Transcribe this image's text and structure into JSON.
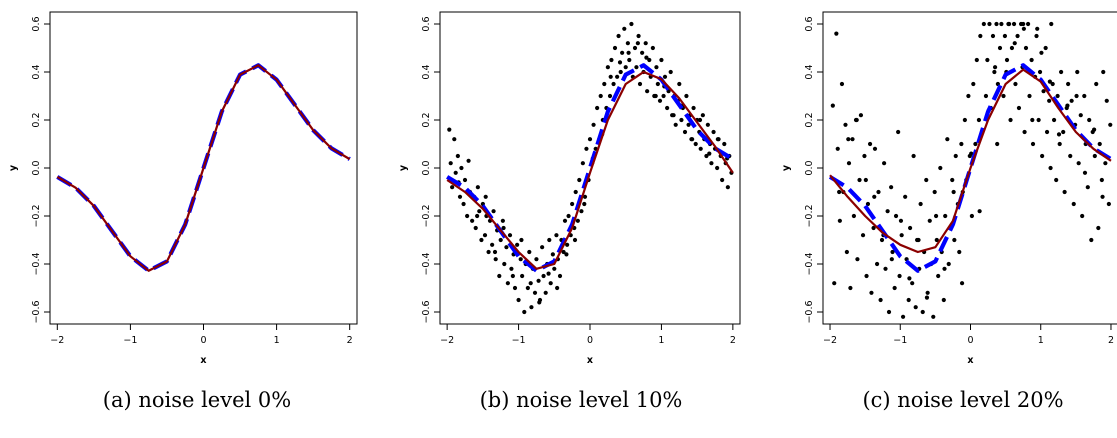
{
  "chart_data": [
    {
      "type": "scatter",
      "caption": "(a) noise level 0%",
      "xlabel": "x",
      "ylabel": "y",
      "xlim": [
        -2.1,
        2.1
      ],
      "ylim": [
        -0.65,
        0.65
      ],
      "xticks": [
        -2,
        -1,
        0,
        1,
        2
      ],
      "yticks": [
        -0.6,
        -0.4,
        -0.2,
        0.0,
        0.2,
        0.4,
        0.6
      ],
      "xtick_labels": [
        "−2",
        "−1",
        "0",
        "1",
        "2"
      ],
      "ytick_labels": [
        "−0.6",
        "−0.4",
        "−0.2",
        "0.0",
        "0.2",
        "0.4",
        "0.6"
      ],
      "grid": false,
      "true_curve": {
        "color": "#0000ff",
        "style": "dashed",
        "x": [
          -2.0,
          -1.75,
          -1.5,
          -1.25,
          -1.0,
          -0.75,
          -0.5,
          -0.25,
          0.0,
          0.25,
          0.5,
          0.75,
          1.0,
          1.25,
          1.5,
          1.75,
          2.0
        ],
        "y": [
          -0.037,
          -0.082,
          -0.158,
          -0.263,
          -0.368,
          -0.428,
          -0.389,
          -0.235,
          0.0,
          0.235,
          0.389,
          0.428,
          0.368,
          0.263,
          0.158,
          0.082,
          0.037
        ]
      },
      "fitted_curve": {
        "color": "#8b0000",
        "style": "solid",
        "x": [
          -2.0,
          -1.75,
          -1.5,
          -1.25,
          -1.0,
          -0.75,
          -0.5,
          -0.25,
          0.0,
          0.25,
          0.5,
          0.75,
          1.0,
          1.25,
          1.5,
          1.75,
          2.0
        ],
        "y": [
          -0.037,
          -0.082,
          -0.158,
          -0.263,
          -0.368,
          -0.428,
          -0.389,
          -0.235,
          0.0,
          0.235,
          0.389,
          0.428,
          0.368,
          0.263,
          0.158,
          0.082,
          0.037
        ]
      },
      "points": {
        "color": "#000000",
        "x": [],
        "y": []
      }
    },
    {
      "type": "scatter",
      "caption": "(b) noise level 10%",
      "xlabel": "x",
      "ylabel": "y",
      "xlim": [
        -2.1,
        2.1
      ],
      "ylim": [
        -0.65,
        0.65
      ],
      "xticks": [
        -2,
        -1,
        0,
        1,
        2
      ],
      "yticks": [
        -0.6,
        -0.4,
        -0.2,
        0.0,
        0.2,
        0.4,
        0.6
      ],
      "xtick_labels": [
        "−2",
        "−1",
        "0",
        "1",
        "2"
      ],
      "ytick_labels": [
        "−0.6",
        "−0.4",
        "−0.2",
        "0.0",
        "0.2",
        "0.4",
        "0.6"
      ],
      "grid": false,
      "true_curve": {
        "color": "#0000ff",
        "style": "dashed",
        "x": [
          -2.0,
          -1.75,
          -1.5,
          -1.25,
          -1.0,
          -0.75,
          -0.5,
          -0.25,
          0.0,
          0.25,
          0.5,
          0.75,
          1.0,
          1.25,
          1.5,
          1.75,
          2.0
        ],
        "y": [
          -0.037,
          -0.082,
          -0.158,
          -0.263,
          -0.368,
          -0.428,
          -0.389,
          -0.235,
          0.0,
          0.235,
          0.389,
          0.428,
          0.368,
          0.263,
          0.158,
          0.082,
          0.037
        ]
      },
      "fitted_curve": {
        "color": "#8b0000",
        "style": "solid",
        "x": [
          -2.0,
          -1.75,
          -1.5,
          -1.25,
          -1.0,
          -0.75,
          -0.5,
          -0.25,
          0.0,
          0.25,
          0.5,
          0.75,
          1.0,
          1.25,
          1.5,
          1.75,
          2.0
        ],
        "y": [
          -0.05,
          -0.1,
          -0.17,
          -0.26,
          -0.35,
          -0.42,
          -0.4,
          -0.25,
          -0.02,
          0.2,
          0.35,
          0.4,
          0.37,
          0.29,
          0.19,
          0.09,
          -0.02
        ]
      },
      "points": {
        "color": "#000000",
        "x": [
          -1.95,
          -1.93,
          -1.9,
          -1.88,
          -1.85,
          -1.82,
          -1.8,
          -1.77,
          -1.75,
          -1.72,
          -1.7,
          -1.68,
          -1.65,
          -1.62,
          -1.6,
          -1.57,
          -1.55,
          -1.52,
          -1.5,
          -1.47,
          -1.45,
          -1.42,
          -1.4,
          -1.37,
          -1.35,
          -1.32,
          -1.3,
          -1.27,
          -1.25,
          -1.22,
          -1.2,
          -1.17,
          -1.15,
          -1.12,
          -1.1,
          -1.07,
          -1.05,
          -1.02,
          -1.0,
          -0.97,
          -0.95,
          -0.92,
          -0.9,
          -0.87,
          -0.85,
          -0.82,
          -0.8,
          -0.77,
          -0.75,
          -0.72,
          -0.7,
          -0.67,
          -0.65,
          -0.62,
          -0.6,
          -0.57,
          -0.55,
          -0.52,
          -0.5,
          -0.47,
          -0.45,
          -0.42,
          -0.4,
          -0.37,
          -0.35,
          -0.32,
          -0.3,
          -0.27,
          -0.25,
          -0.22,
          -0.2,
          -0.17,
          -0.15,
          -0.12,
          -0.1,
          -0.07,
          -0.05,
          -0.02,
          0.0,
          0.03,
          0.05,
          0.08,
          0.1,
          0.13,
          0.15,
          0.18,
          0.2,
          0.23,
          0.25,
          0.28,
          0.3,
          0.33,
          0.35,
          0.38,
          0.4,
          0.43,
          0.45,
          0.48,
          0.5,
          0.53,
          0.55,
          0.58,
          0.6,
          0.63,
          0.65,
          0.68,
          0.7,
          0.73,
          0.75,
          0.78,
          0.8,
          0.83,
          0.85,
          0.88,
          0.9,
          0.93,
          0.95,
          0.98,
          1.0,
          1.03,
          1.05,
          1.08,
          1.1,
          1.13,
          1.15,
          1.18,
          1.2,
          1.23,
          1.25,
          1.28,
          1.3,
          1.33,
          1.35,
          1.38,
          1.4,
          1.43,
          1.45,
          1.48,
          1.5,
          1.53,
          1.55,
          1.58,
          1.6,
          1.63,
          1.65,
          1.68,
          1.7,
          1.73,
          1.75,
          1.78,
          1.8,
          1.83,
          1.85,
          1.88,
          1.9,
          1.93,
          1.95,
          1.98,
          -1.97,
          -1.84,
          -1.71,
          -1.58,
          -1.46,
          -1.33,
          -1.21,
          -1.08,
          -0.96,
          -0.83,
          -0.71,
          -0.58,
          -0.46,
          -0.33,
          -0.21,
          -0.08,
          0.04,
          0.17,
          0.29,
          0.42,
          0.54,
          0.67,
          0.79,
          0.92,
          1.04,
          1.17,
          1.29,
          1.42,
          1.54,
          1.67,
          1.79,
          1.92
        ],
        "y": [
          0.02,
          -0.08,
          0.12,
          -0.02,
          0.05,
          -0.12,
          0.0,
          -0.15,
          -0.05,
          -0.2,
          0.03,
          -0.1,
          -0.22,
          -0.12,
          -0.25,
          -0.08,
          -0.18,
          -0.3,
          -0.15,
          -0.28,
          -0.2,
          -0.35,
          -0.22,
          -0.32,
          -0.18,
          -0.38,
          -0.26,
          -0.45,
          -0.3,
          -0.22,
          -0.4,
          -0.33,
          -0.48,
          -0.28,
          -0.42,
          -0.36,
          -0.5,
          -0.32,
          -0.55,
          -0.38,
          -0.45,
          -0.6,
          -0.4,
          -0.5,
          -0.35,
          -0.58,
          -0.42,
          -0.52,
          -0.38,
          -0.47,
          -0.55,
          -0.33,
          -0.45,
          -0.52,
          -0.4,
          -0.3,
          -0.48,
          -0.36,
          -0.42,
          -0.28,
          -0.38,
          -0.45,
          -0.3,
          -0.35,
          -0.22,
          -0.32,
          -0.2,
          -0.28,
          -0.15,
          -0.25,
          -0.1,
          -0.22,
          -0.05,
          -0.18,
          0.02,
          -0.12,
          0.08,
          -0.05,
          0.12,
          0.02,
          0.18,
          0.08,
          0.25,
          0.12,
          0.3,
          0.2,
          0.35,
          0.25,
          0.42,
          0.3,
          0.45,
          0.35,
          0.5,
          0.38,
          0.55,
          0.4,
          0.48,
          0.58,
          0.42,
          0.52,
          0.45,
          0.6,
          0.38,
          0.5,
          0.42,
          0.55,
          0.35,
          0.48,
          0.4,
          0.52,
          0.32,
          0.45,
          0.38,
          0.5,
          0.3,
          0.42,
          0.35,
          0.28,
          0.45,
          0.3,
          0.38,
          0.25,
          0.32,
          0.4,
          0.22,
          0.3,
          0.18,
          0.28,
          0.35,
          0.2,
          0.25,
          0.15,
          0.3,
          0.18,
          0.22,
          0.12,
          0.25,
          0.1,
          0.2,
          0.15,
          0.08,
          0.22,
          0.12,
          0.05,
          0.18,
          0.1,
          0.02,
          0.15,
          0.08,
          0.0,
          0.12,
          0.05,
          -0.05,
          0.1,
          0.02,
          -0.08,
          0.05,
          -0.02,
          0.16,
          -0.06,
          -0.1,
          -0.2,
          -0.12,
          -0.35,
          -0.25,
          -0.45,
          -0.3,
          -0.48,
          -0.56,
          -0.44,
          -0.5,
          -0.36,
          -0.3,
          -0.15,
          0.04,
          0.14,
          0.38,
          0.44,
          0.48,
          0.52,
          0.46,
          0.3,
          0.34,
          0.22,
          0.26,
          0.12,
          0.2,
          0.06,
          0.12,
          0.04
        ]
      }
    },
    {
      "type": "scatter",
      "caption": "(c) noise level 20%",
      "xlabel": "x",
      "ylabel": "y",
      "xlim": [
        -2.1,
        2.1
      ],
      "ylim": [
        -0.65,
        0.65
      ],
      "xticks": [
        -2,
        -1,
        0,
        1,
        2
      ],
      "yticks": [
        -0.6,
        -0.4,
        -0.2,
        0.0,
        0.2,
        0.4,
        0.6
      ],
      "xtick_labels": [
        "−2",
        "−1",
        "0",
        "1",
        "2"
      ],
      "ytick_labels": [
        "−0.6",
        "−0.4",
        "−0.2",
        "0.0",
        "0.2",
        "0.4",
        "0.6"
      ],
      "grid": false,
      "true_curve": {
        "color": "#0000ff",
        "style": "dashed",
        "x": [
          -2.0,
          -1.75,
          -1.5,
          -1.25,
          -1.0,
          -0.75,
          -0.5,
          -0.25,
          0.0,
          0.25,
          0.5,
          0.75,
          1.0,
          1.25,
          1.5,
          1.75,
          2.0
        ],
        "y": [
          -0.037,
          -0.082,
          -0.158,
          -0.263,
          -0.368,
          -0.428,
          -0.389,
          -0.235,
          0.0,
          0.235,
          0.389,
          0.428,
          0.368,
          0.263,
          0.158,
          0.082,
          0.037
        ]
      },
      "fitted_curve": {
        "color": "#8b0000",
        "style": "solid",
        "x": [
          -2.0,
          -1.75,
          -1.5,
          -1.25,
          -1.0,
          -0.75,
          -0.5,
          -0.25,
          0.0,
          0.25,
          0.5,
          0.75,
          1.0,
          1.25,
          1.5,
          1.75,
          2.0
        ],
        "y": [
          -0.03,
          -0.12,
          -0.2,
          -0.27,
          -0.32,
          -0.35,
          -0.33,
          -0.22,
          0.0,
          0.2,
          0.35,
          0.41,
          0.36,
          0.25,
          0.15,
          0.08,
          0.03
        ]
      },
      "points": {
        "color": "#000000",
        "x": [
          -1.96,
          -1.94,
          -1.91,
          -1.89,
          -1.86,
          -1.83,
          -1.81,
          -1.78,
          -1.76,
          -1.73,
          -1.71,
          -1.68,
          -1.66,
          -1.63,
          -1.61,
          -1.58,
          -1.56,
          -1.53,
          -1.51,
          -1.48,
          -1.46,
          -1.43,
          -1.41,
          -1.38,
          -1.36,
          -1.33,
          -1.31,
          -1.28,
          -1.26,
          -1.23,
          -1.21,
          -1.18,
          -1.16,
          -1.13,
          -1.11,
          -1.08,
          -1.06,
          -1.03,
          -1.01,
          -0.98,
          -0.96,
          -0.93,
          -0.91,
          -0.88,
          -0.86,
          -0.83,
          -0.81,
          -0.78,
          -0.76,
          -0.73,
          -0.71,
          -0.68,
          -0.66,
          -0.63,
          -0.61,
          -0.58,
          -0.56,
          -0.53,
          -0.51,
          -0.48,
          -0.46,
          -0.43,
          -0.41,
          -0.38,
          -0.36,
          -0.33,
          -0.31,
          -0.28,
          -0.26,
          -0.23,
          -0.21,
          -0.18,
          -0.16,
          -0.13,
          -0.11,
          -0.08,
          -0.06,
          -0.03,
          -0.01,
          0.02,
          0.04,
          0.07,
          0.09,
          0.12,
          0.14,
          0.17,
          0.19,
          0.22,
          0.24,
          0.27,
          0.29,
          0.32,
          0.34,
          0.37,
          0.39,
          0.42,
          0.44,
          0.47,
          0.49,
          0.52,
          0.54,
          0.57,
          0.59,
          0.62,
          0.64,
          0.67,
          0.69,
          0.72,
          0.74,
          0.77,
          0.79,
          0.82,
          0.84,
          0.87,
          0.89,
          0.92,
          0.94,
          0.97,
          0.99,
          1.02,
          1.04,
          1.07,
          1.09,
          1.12,
          1.14,
          1.17,
          1.19,
          1.22,
          1.24,
          1.27,
          1.29,
          1.32,
          1.34,
          1.37,
          1.39,
          1.42,
          1.44,
          1.47,
          1.49,
          1.52,
          1.54,
          1.57,
          1.59,
          1.62,
          1.64,
          1.67,
          1.69,
          1.72,
          1.74,
          1.77,
          1.79,
          1.82,
          1.84,
          1.87,
          1.89,
          1.92,
          1.94,
          1.97,
          1.99,
          -1.87,
          -1.74,
          -1.62,
          -1.49,
          -1.37,
          -1.24,
          -1.12,
          -0.99,
          -0.87,
          -0.74,
          -0.62,
          -0.49,
          -0.37,
          -0.24,
          -0.12,
          0.01,
          0.13,
          0.26,
          0.38,
          0.51,
          0.63,
          0.76,
          0.88,
          1.01,
          1.13,
          1.26,
          1.38,
          1.51,
          1.63,
          1.76,
          1.88,
          0.35,
          0.55,
          0.75,
          0.95,
          1.15
        ],
        "y": [
          0.26,
          -0.48,
          0.56,
          0.08,
          -0.22,
          0.35,
          -0.1,
          0.18,
          -0.35,
          0.02,
          -0.5,
          0.12,
          -0.2,
          0.2,
          -0.38,
          -0.05,
          0.22,
          -0.28,
          0.05,
          -0.45,
          -0.15,
          0.1,
          -0.52,
          -0.25,
          0.08,
          -0.4,
          -0.1,
          -0.55,
          -0.3,
          0.02,
          -0.42,
          -0.18,
          -0.6,
          -0.08,
          -0.35,
          -0.5,
          -0.2,
          0.15,
          -0.45,
          -0.28,
          -0.62,
          -0.12,
          -0.38,
          -0.55,
          -0.25,
          -0.48,
          0.05,
          -0.58,
          -0.3,
          -0.42,
          -0.15,
          -0.6,
          -0.35,
          -0.05,
          -0.52,
          -0.22,
          -0.4,
          -0.62,
          -0.1,
          -0.3,
          -0.45,
          0.0,
          -0.35,
          -0.55,
          -0.2,
          0.12,
          -0.4,
          -0.25,
          -0.05,
          -0.3,
          0.05,
          -0.15,
          -0.35,
          0.1,
          -0.1,
          0.2,
          -0.05,
          0.3,
          0.05,
          -0.2,
          0.35,
          0.1,
          0.45,
          0.2,
          0.55,
          0.15,
          0.6,
          0.3,
          0.45,
          0.6,
          0.25,
          0.55,
          0.4,
          0.6,
          0.35,
          0.5,
          0.6,
          0.3,
          0.55,
          0.45,
          0.6,
          0.2,
          0.5,
          0.6,
          0.35,
          0.55,
          0.25,
          0.6,
          0.42,
          0.15,
          0.5,
          0.6,
          0.3,
          0.45,
          0.1,
          0.38,
          0.55,
          0.2,
          0.4,
          0.05,
          0.32,
          0.5,
          0.15,
          0.28,
          0.0,
          0.35,
          0.2,
          -0.05,
          0.3,
          0.1,
          0.4,
          0.15,
          -0.1,
          0.25,
          0.35,
          0.05,
          0.28,
          -0.15,
          0.18,
          0.4,
          0.02,
          0.22,
          -0.2,
          0.3,
          0.1,
          -0.08,
          0.2,
          -0.3,
          0.15,
          0.05,
          0.35,
          -0.25,
          0.1,
          -0.05,
          0.4,
          0.02,
          0.28,
          -0.15,
          0.18,
          -0.1,
          0.12,
          0.2,
          -0.05,
          -0.12,
          -0.28,
          -0.38,
          -0.22,
          -0.46,
          -0.3,
          -0.54,
          -0.2,
          -0.42,
          -0.1,
          -0.48,
          0.06,
          -0.18,
          0.24,
          0.1,
          0.4,
          0.52,
          0.58,
          0.2,
          0.48,
          0.36,
          0.14,
          0.26,
          0.3,
          -0.02,
          0.16,
          -0.12,
          0.42,
          0.6,
          0.6,
          0.58,
          0.6
        ]
      }
    }
  ]
}
